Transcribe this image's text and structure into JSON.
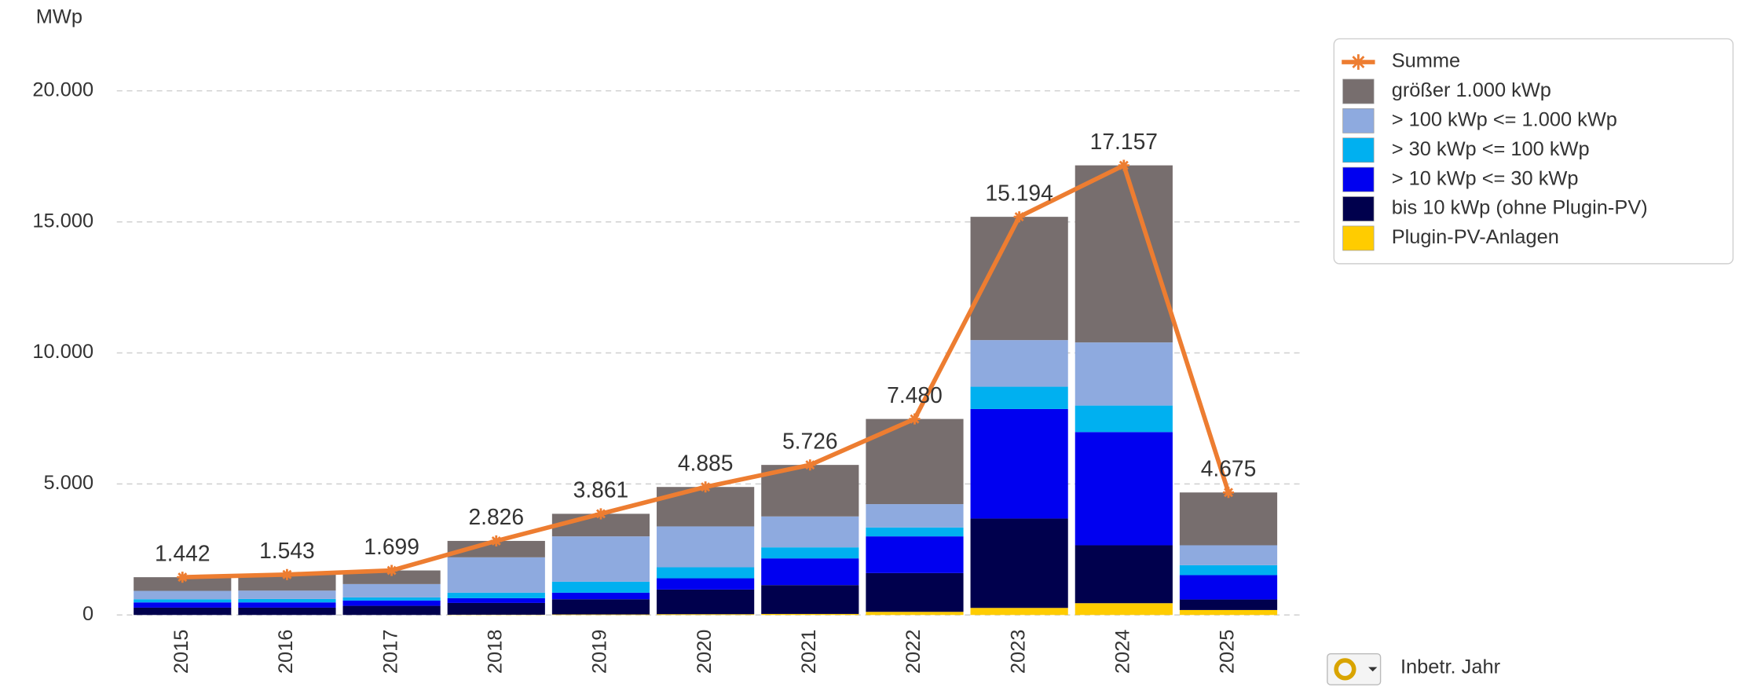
{
  "chart_data": {
    "type": "bar",
    "stacked": true,
    "y_unit_label": "MWp",
    "x_axis_button_label": "Inbetr. Jahr",
    "categories": [
      "2015",
      "2016",
      "2017",
      "2018",
      "2019",
      "2020",
      "2021",
      "2022",
      "2023",
      "2024",
      "2025"
    ],
    "series": [
      {
        "name": "Plugin-PV-Anlagen",
        "color": "#ffcc00",
        "values": [
          0,
          0,
          0,
          10,
          20,
          30,
          40,
          120,
          270,
          450,
          190
        ]
      },
      {
        "name": "bis 10 kWp (ohne Plugin-PV)",
        "color": "#00004d",
        "values": [
          280,
          280,
          350,
          450,
          580,
          940,
          1100,
          1480,
          3410,
          2210,
          400
        ]
      },
      {
        "name": "> 10 kWp <= 30 kWp",
        "color": "#0000f0",
        "values": [
          200,
          200,
          200,
          180,
          250,
          430,
          1020,
          1400,
          4180,
          4320,
          930
        ]
      },
      {
        "name": "> 30 kWp <= 100 kWp",
        "color": "#00b0f0",
        "values": [
          120,
          130,
          120,
          210,
          420,
          420,
          420,
          340,
          850,
          1010,
          380
        ]
      },
      {
        "name": "> 100 kWp <= 1.000 kWp",
        "color": "#8eaadf",
        "values": [
          320,
          320,
          510,
          1350,
          1730,
          1560,
          1180,
          890,
          1780,
          2410,
          760
        ]
      },
      {
        "name": "größer 1.000 kWp",
        "color": "#776e6e",
        "values": [
          522,
          613,
          519,
          626,
          861,
          1505,
          1966,
          3250,
          4704,
          6757,
          2015
        ]
      },
      {
        "name": "Summe",
        "type": "line",
        "color": "#ed7d31",
        "values": [
          1442,
          1543,
          1699,
          2826,
          3861,
          4885,
          5726,
          7480,
          15194,
          17157,
          4675
        ],
        "value_labels": [
          "1.442",
          "1.543",
          "1.699",
          "2.826",
          "3.861",
          "4.885",
          "5.726",
          "7.480",
          "15.194",
          "17.157",
          "4.675"
        ]
      }
    ],
    "ylim": [
      0,
      20000
    ],
    "yticks": [
      0,
      {
        "value": 5000,
        "label": "5.000"
      },
      {
        "value": 10000,
        "label": "10.000"
      },
      {
        "value": 15000,
        "label": "15.000"
      },
      {
        "value": 20000,
        "label": "20.000"
      }
    ],
    "grid": true,
    "legend": "top-right"
  }
}
